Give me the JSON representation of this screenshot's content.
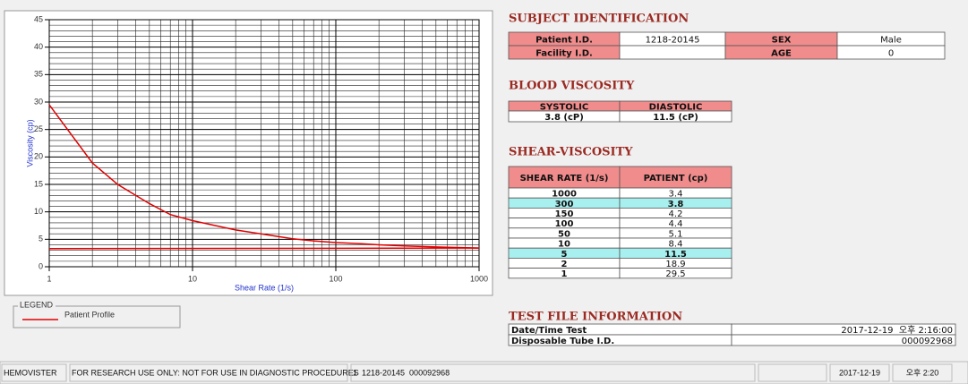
{
  "chart_data": {
    "type": "line",
    "xlabel": "Shear Rate (1/s)",
    "ylabel": "Viscosity (cp)",
    "xlog": true,
    "xlim": [
      1,
      1000
    ],
    "xticks": [
      1,
      10,
      100,
      1000
    ],
    "ylim": [
      0,
      45
    ],
    "yticks": [
      0,
      5,
      10,
      15,
      20,
      25,
      30,
      35,
      40,
      45
    ],
    "grid": true,
    "minor_grid": true,
    "legend_title": "LEGEND",
    "series": [
      {
        "name": "Patient Profile",
        "color": "#e00000",
        "x": [
          1,
          2,
          3,
          5,
          7,
          10,
          20,
          30,
          50,
          70,
          100,
          150,
          200,
          300,
          500,
          700,
          1000
        ],
        "values": [
          29.5,
          18.9,
          15,
          11.5,
          9.5,
          8.4,
          6.7,
          6,
          5.1,
          4.7,
          4.4,
          4.2,
          4,
          3.8,
          3.6,
          3.5,
          3.4
        ]
      },
      {
        "color": "#e00000",
        "x": [
          1,
          1000
        ],
        "values": [
          3.3,
          3.4
        ]
      }
    ]
  },
  "subject_identification": {
    "title": "SUBJECT IDENTIFICATION",
    "rows": [
      [
        "Patient I.D.",
        "1218-20145",
        "SEX",
        "Male"
      ],
      [
        "Facility I.D.",
        null,
        "AGE",
        0
      ]
    ]
  },
  "blood_viscosity": {
    "title": "BLOOD VISCOSITY",
    "header": [
      "SYSTOLIC",
      "DIASTOLIC"
    ],
    "values": [
      "3.8 (cP)",
      "11.5 (cP)"
    ]
  },
  "shear_viscosity": {
    "title": "SHEAR-VISCOSITY",
    "header": [
      "SHEAR RATE (1/s)",
      "PATIENT (cp)"
    ],
    "rows": [
      [
        1000,
        3.4
      ],
      [
        300,
        3.8
      ],
      [
        150,
        4.2
      ],
      [
        100,
        4.4
      ],
      [
        50,
        5.1
      ],
      [
        10,
        8.4
      ],
      [
        5,
        11.5
      ],
      [
        2,
        18.9
      ],
      [
        1,
        29.5
      ]
    ],
    "highlight_rows": [
      1,
      6
    ],
    "highlight_color": "#a8f0f0"
  },
  "test_file_information": {
    "title": "TEST FILE INFORMATION",
    "rows": [
      [
        "Date/Time Test",
        "2017-12-19  오후 2:16:00"
      ],
      [
        "Disposable Tube I.D.",
        "000092968"
      ]
    ]
  },
  "status_bar": [
    "HEMOVISTER",
    "FOR RESEARCH USE ONLY: NOT FOR USE IN DIAGNOSTIC PROCEDURES",
    "1  1218-20145  000092968",
    null,
    "2017-12-19",
    "오후 2:20"
  ]
}
